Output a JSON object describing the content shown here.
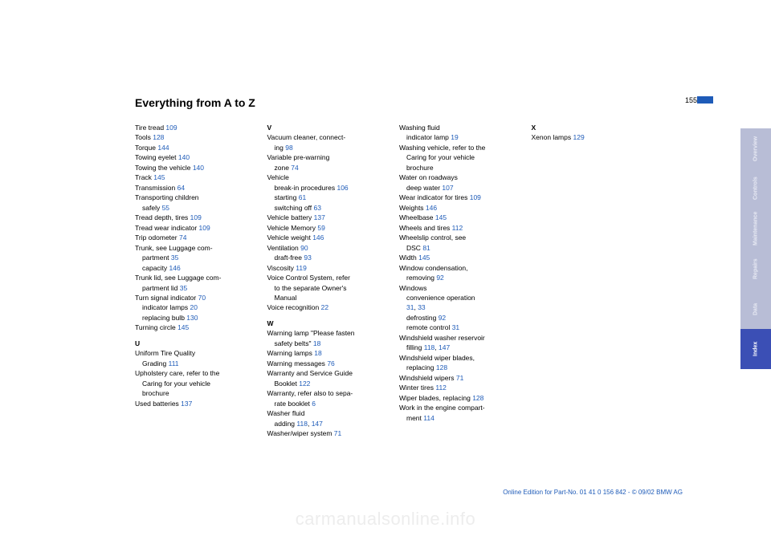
{
  "title": "Everything from A to Z",
  "page_number": "155",
  "footer": "Online Edition for Part-No. 01 41 0 156 842 - © 09/02 BMW AG",
  "watermark": "carmanualsonline.info",
  "link_color": "#1e5bb8",
  "text_color": "#000000",
  "tab_dim_bg": "#b8bdd6",
  "tab_active_bg": "#3b4fb5",
  "tabs": [
    {
      "label": "Overview",
      "active": false
    },
    {
      "label": "Controls",
      "active": false
    },
    {
      "label": "Maintenance",
      "active": false
    },
    {
      "label": "Repairs",
      "active": false
    },
    {
      "label": "Data",
      "active": false
    },
    {
      "label": "Index",
      "active": true
    }
  ],
  "columns": [
    [
      {
        "t": "Tire tread ",
        "r": "109"
      },
      {
        "t": "Tools ",
        "r": "128"
      },
      {
        "t": "Torque ",
        "r": "144"
      },
      {
        "t": "Towing eyelet ",
        "r": "140"
      },
      {
        "t": "Towing the vehicle ",
        "r": "140"
      },
      {
        "t": "Track ",
        "r": "145"
      },
      {
        "t": "Transmission ",
        "r": "64"
      },
      {
        "t": "Transporting children"
      },
      {
        "t": "safely ",
        "r": "55",
        "sub": true
      },
      {
        "t": "Tread depth, tires ",
        "r": "109"
      },
      {
        "t": "Tread wear indicator ",
        "r": "109"
      },
      {
        "t": "Trip odometer ",
        "r": "74"
      },
      {
        "t": "Trunk, see Luggage com-"
      },
      {
        "t": "partment ",
        "r": "35",
        "sub": true
      },
      {
        "t": "capacity ",
        "r": "146",
        "sub": true
      },
      {
        "t": "Trunk lid, see Luggage com-"
      },
      {
        "t": "partment lid ",
        "r": "35",
        "sub": true
      },
      {
        "t": "Turn signal indicator ",
        "r": "70"
      },
      {
        "t": "indicator lamps ",
        "r": "20",
        "sub": true
      },
      {
        "t": "replacing bulb ",
        "r": "130",
        "sub": true
      },
      {
        "t": "Turning circle ",
        "r": "145"
      },
      {
        "letter": "U"
      },
      {
        "t": "Uniform Tire Quality"
      },
      {
        "t": "Grading ",
        "r": "111",
        "sub": true
      },
      {
        "t": "Upholstery care, refer to the"
      },
      {
        "t": "Caring for your vehicle",
        "sub": true
      },
      {
        "t": "brochure",
        "sub": true
      },
      {
        "t": "Used batteries ",
        "r": "137"
      }
    ],
    [
      {
        "letter": "V"
      },
      {
        "t": "Vacuum cleaner, connect-"
      },
      {
        "t": "ing ",
        "r": "98",
        "sub": true
      },
      {
        "t": "Variable pre-warning"
      },
      {
        "t": "zone ",
        "r": "74",
        "sub": true
      },
      {
        "t": "Vehicle"
      },
      {
        "t": "break-in procedures ",
        "r": "106",
        "sub": true
      },
      {
        "t": "starting ",
        "r": "61",
        "sub": true
      },
      {
        "t": "switching off ",
        "r": "63",
        "sub": true
      },
      {
        "t": "Vehicle battery ",
        "r": "137"
      },
      {
        "t": "Vehicle Memory ",
        "r": "59"
      },
      {
        "t": "Vehicle weight ",
        "r": "146"
      },
      {
        "t": "Ventilation ",
        "r": "90"
      },
      {
        "t": "draft-free ",
        "r": "93",
        "sub": true
      },
      {
        "t": "Viscosity ",
        "r": "119"
      },
      {
        "t": "Voice Control System, refer"
      },
      {
        "t": "to the separate Owner's",
        "sub": true
      },
      {
        "t": "Manual",
        "sub": true
      },
      {
        "t": "Voice recognition ",
        "r": "22"
      },
      {
        "letter": "W"
      },
      {
        "t": "Warning lamp \"Please fasten"
      },
      {
        "t": "safety belts\" ",
        "r": "18",
        "sub": true
      },
      {
        "t": "Warning lamps ",
        "r": "18"
      },
      {
        "t": "Warning messages ",
        "r": "76"
      },
      {
        "t": "Warranty and Service Guide"
      },
      {
        "t": "Booklet ",
        "r": "122",
        "sub": true
      },
      {
        "t": "Warranty, refer also to sepa-"
      },
      {
        "t": "rate booklet ",
        "r": "6",
        "sub": true
      },
      {
        "t": "Washer fluid"
      },
      {
        "t": "adding ",
        "r": "118",
        "r2": "147",
        "sub": true
      },
      {
        "t": "Washer/wiper system ",
        "r": "71"
      }
    ],
    [
      {
        "t": "Washing fluid"
      },
      {
        "t": "indicator lamp ",
        "r": "19",
        "sub": true
      },
      {
        "t": "Washing vehicle, refer to the"
      },
      {
        "t": "Caring for your vehicle",
        "sub": true
      },
      {
        "t": "brochure",
        "sub": true
      },
      {
        "t": "Water on roadways"
      },
      {
        "t": "deep water ",
        "r": "107",
        "sub": true
      },
      {
        "t": "Wear indicator for tires ",
        "r": "109"
      },
      {
        "t": "Weights ",
        "r": "146"
      },
      {
        "t": "Wheelbase ",
        "r": "145"
      },
      {
        "t": "Wheels and tires ",
        "r": "112"
      },
      {
        "t": "Wheelslip control, see"
      },
      {
        "t": "DSC ",
        "r": "81",
        "sub": true
      },
      {
        "t": "Width ",
        "r": "145"
      },
      {
        "t": "Window condensation,"
      },
      {
        "t": "removing ",
        "r": "92",
        "sub": true
      },
      {
        "t": "Windows"
      },
      {
        "t": "convenience operation",
        "sub": true
      },
      {
        "t": "",
        "r": "31",
        "r2": "33",
        "sub": true
      },
      {
        "t": "defrosting ",
        "r": "92",
        "sub": true
      },
      {
        "t": "remote control ",
        "r": "31",
        "sub": true
      },
      {
        "t": "Windshield washer reservoir"
      },
      {
        "t": "filling ",
        "r": "118",
        "r2": "147",
        "sub": true
      },
      {
        "t": "Windshield wiper blades,"
      },
      {
        "t": "replacing ",
        "r": "128",
        "sub": true
      },
      {
        "t": "Windshield wipers ",
        "r": "71"
      },
      {
        "t": "Winter tires ",
        "r": "112"
      },
      {
        "t": "Wiper blades, replacing ",
        "r": "128"
      },
      {
        "t": "Work in the engine compart-"
      },
      {
        "t": "ment ",
        "r": "114",
        "sub": true
      }
    ],
    [
      {
        "letter": "X"
      },
      {
        "t": "Xenon lamps ",
        "r": "129"
      }
    ]
  ]
}
